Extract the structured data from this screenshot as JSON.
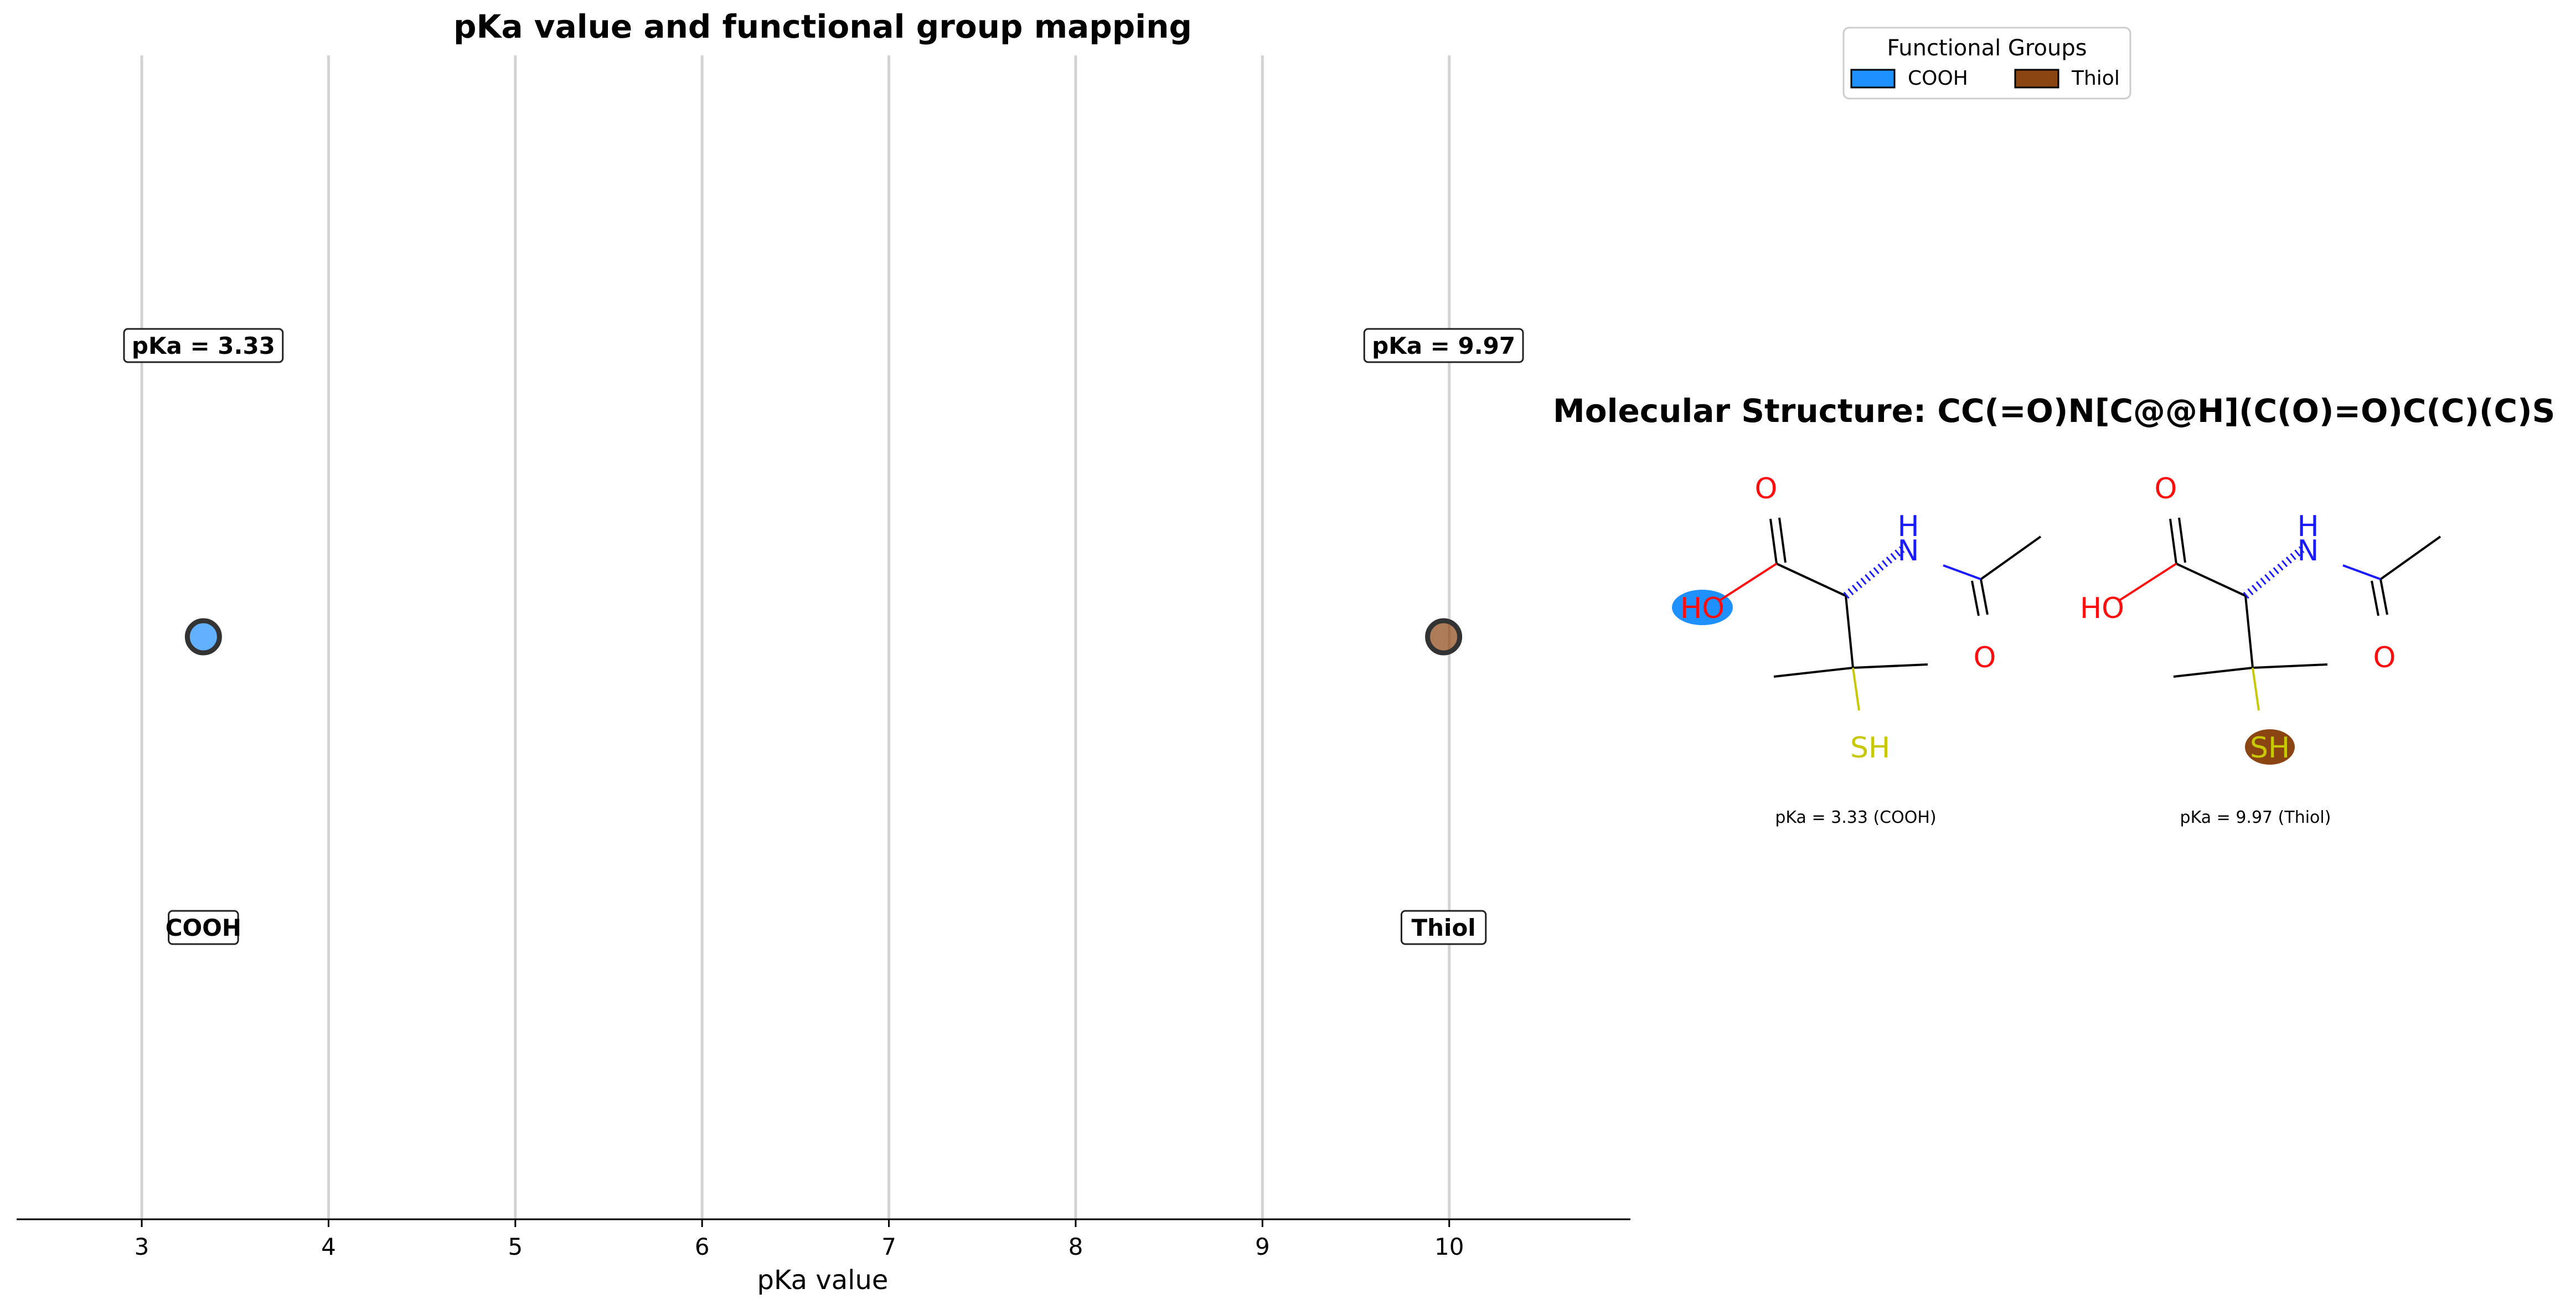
{
  "chart_data": {
    "type": "scatter",
    "title": "pKa value and functional group mapping",
    "xlabel": "pKa value",
    "ylabel": "",
    "xlim": [
      2.33,
      10.97
    ],
    "xticks": [
      3,
      4,
      5,
      6,
      7,
      8,
      9,
      10
    ],
    "grid": "vertical",
    "legend": {
      "title": "Functional Groups",
      "placement": "top-right",
      "items": [
        {
          "label": "COOH",
          "color": "#1E90FF"
        },
        {
          "label": "Thiol",
          "color": "#8B4513"
        }
      ]
    },
    "series": [
      {
        "name": "COOH",
        "x": [
          3.33
        ],
        "color": "#1E90FF",
        "value_label": "pKa = 3.33",
        "group_label": "COOH"
      },
      {
        "name": "Thiol",
        "x": [
          9.97
        ],
        "color": "#8B4513",
        "value_label": "pKa = 9.97",
        "group_label": "Thiol"
      }
    ]
  },
  "molecule": {
    "title": "Molecular Structure: CC(=O)N[C@@H](C(O)=O)C(C)(C)S",
    "panels": [
      {
        "caption": "pKa = 3.33 (COOH)",
        "highlight": "HO",
        "highlight_color": "#1E90FF"
      },
      {
        "caption": "pKa = 9.97 (Thiol)",
        "highlight": "SH",
        "highlight_color": "#8B4513"
      }
    ],
    "atoms": {
      "o_top": "O",
      "nh_h": "H",
      "nh_n": "N",
      "ho": "HO",
      "o_amide": "O",
      "sh": "SH"
    },
    "colors": {
      "oxygen": "#FF0D0D",
      "nitrogen": "#1A1AFF",
      "sulfur": "#C8C800",
      "bond": "#000000"
    }
  }
}
